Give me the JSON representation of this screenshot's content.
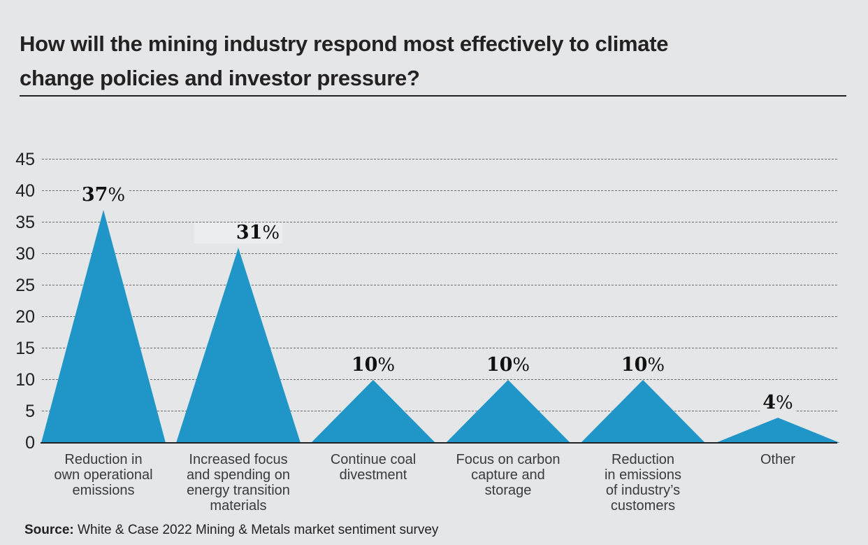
{
  "page": {
    "background_color": "#e5e6e7",
    "accent_color": "#2095c8"
  },
  "header": {
    "title": "How will the mining industry respond most effectively to climate change policies and investor pressure?",
    "title_lines": [
      "How will the mining industry respond most effectively to climate",
      "change policies and investor pressure?"
    ]
  },
  "chart_data": {
    "type": "area",
    "subtype": "triangle-peaks",
    "title": "How will the mining industry respond most effectively to climate change policies and investor pressure?",
    "categories": [
      "Reduction in own operational emissions",
      "Increased focus and spending on energy transition materials",
      "Continue coal divestment",
      "Focus on carbon capture and storage",
      "Reduction in emissions of industry’s customers",
      "Other"
    ],
    "category_lines": [
      [
        "Reduction in",
        "own operational",
        "emissions"
      ],
      [
        "Increased focus",
        "and spending on",
        "energy transition",
        "materials"
      ],
      [
        "Continue coal",
        "divestment"
      ],
      [
        "Focus on carbon",
        "capture and",
        "storage"
      ],
      [
        "Reduction",
        "in emissions",
        "of industry’s",
        "customers"
      ],
      [
        "Other"
      ]
    ],
    "values": [
      37,
      31,
      10,
      10,
      10,
      4
    ],
    "value_suffix": "%",
    "yticks": [
      0,
      5,
      10,
      15,
      20,
      25,
      30,
      35,
      40,
      45
    ],
    "ylim": [
      0,
      45
    ],
    "grid": "horizontal-dashed",
    "legend": "none",
    "peak_color": "#2095c8",
    "xlabel": "",
    "ylabel": ""
  },
  "footer": {
    "source_label": "Source:",
    "source_text": " White & Case 2022 Mining & Metals market sentiment survey"
  }
}
